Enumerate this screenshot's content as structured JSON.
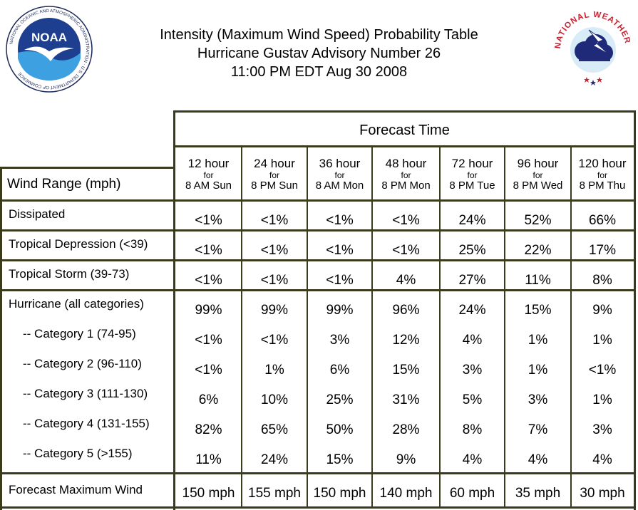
{
  "header": {
    "title_line1": "Intensity (Maximum Wind Speed) Probability Table",
    "title_line2": "Hurricane Gustav Advisory Number 26",
    "title_line3": "11:00 PM EDT Aug 30 2008",
    "noaa_logo_text": "NOAA",
    "noaa_ring_text": "NATIONAL OCEANIC AND ATMOSPHERIC ADMINISTRATION · U.S. DEPARTMENT OF COMMERCE",
    "nws_ring_text": "NATIONAL WEATHER SERVICE"
  },
  "table": {
    "forecast_time_label": "Forecast Time",
    "wind_range_label": "Wind Range (mph)",
    "columns": [
      {
        "hour": "12 hour",
        "for": "for",
        "when": "8 AM Sun"
      },
      {
        "hour": "24 hour",
        "for": "for",
        "when": "8 PM Sun"
      },
      {
        "hour": "36 hour",
        "for": "for",
        "when": "8 AM Mon"
      },
      {
        "hour": "48 hour",
        "for": "for",
        "when": "8 PM Mon"
      },
      {
        "hour": "72 hour",
        "for": "for",
        "when": "8 PM Tue"
      },
      {
        "hour": "96 hour",
        "for": "for",
        "when": "8 PM Wed"
      },
      {
        "hour": "120 hour",
        "for": "for",
        "when": "8 PM Thu"
      }
    ],
    "rows": [
      {
        "label": "Dissipated",
        "values": [
          "<1%",
          "<1%",
          "<1%",
          "<1%",
          "24%",
          "52%",
          "66%"
        ]
      },
      {
        "label": "Tropical Depression (<39)",
        "values": [
          "<1%",
          "<1%",
          "<1%",
          "<1%",
          "25%",
          "22%",
          "17%"
        ]
      },
      {
        "label": "Tropical Storm (39-73)",
        "values": [
          "<1%",
          "<1%",
          "<1%",
          "4%",
          "27%",
          "11%",
          "8%"
        ]
      },
      {
        "label": "Hurricane (all categories)",
        "values": [
          "99%",
          "99%",
          "99%",
          "96%",
          "24%",
          "15%",
          "9%"
        ]
      },
      {
        "label": "-- Category 1 (74-95)",
        "values": [
          "<1%",
          "<1%",
          "3%",
          "12%",
          "4%",
          "1%",
          "1%"
        ]
      },
      {
        "label": "-- Category 2 (96-110)",
        "values": [
          "<1%",
          "1%",
          "6%",
          "15%",
          "3%",
          "1%",
          "<1%"
        ]
      },
      {
        "label": "-- Category 3 (111-130)",
        "values": [
          "6%",
          "10%",
          "25%",
          "31%",
          "5%",
          "3%",
          "1%"
        ]
      },
      {
        "label": "-- Category 4 (131-155)",
        "values": [
          "82%",
          "65%",
          "50%",
          "28%",
          "8%",
          "7%",
          "3%"
        ]
      },
      {
        "label": "-- Category 5 (>155)",
        "values": [
          "11%",
          "24%",
          "15%",
          "9%",
          "4%",
          "4%",
          "4%"
        ]
      }
    ],
    "max_wind": {
      "label": "Forecast Maximum Wind",
      "values": [
        "150 mph",
        "155 mph",
        "150 mph",
        "140 mph",
        "60 mph",
        "35 mph",
        "30 mph"
      ]
    }
  },
  "colors": {
    "grid": "#3a3a1c",
    "noaa_blue": "#1e3f8f",
    "nws_red": "#cc1f2e"
  }
}
